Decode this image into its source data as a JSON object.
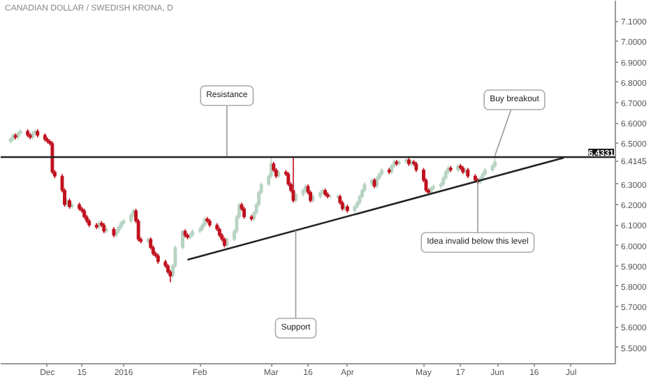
{
  "chart_data": {
    "type": "candlestick",
    "title": "CANADIAN DOLLAR / SWEDISH KRONA, D",
    "xlim": [
      "2015-11-12",
      "2016-07-19"
    ],
    "ylim": [
      5.42,
      7.2
    ],
    "xticks": [
      {
        "value": "2015-12-01",
        "label": "Dec"
      },
      {
        "value": "2015-12-15",
        "label": "15"
      },
      {
        "value": "2016-01-01",
        "label": "2016"
      },
      {
        "value": "2016-02-01",
        "label": "Feb"
      },
      {
        "value": "2016-03-01",
        "label": "Mar"
      },
      {
        "value": "2016-03-16",
        "label": "16"
      },
      {
        "value": "2016-04-01",
        "label": "Apr"
      },
      {
        "value": "2016-05-02",
        "label": "May"
      },
      {
        "value": "2016-05-17",
        "label": "17"
      },
      {
        "value": "2016-06-01",
        "label": "Jun"
      },
      {
        "value": "2016-06-16",
        "label": "16"
      },
      {
        "value": "2016-07-01",
        "label": "Jul"
      }
    ],
    "yticks": [
      {
        "value": 5.5,
        "label": "5.5000"
      },
      {
        "value": 5.6,
        "label": "5.6000"
      },
      {
        "value": 5.7,
        "label": "5.7000"
      },
      {
        "value": 5.8,
        "label": "5.8000"
      },
      {
        "value": 5.9,
        "label": "5.9000"
      },
      {
        "value": 6.0,
        "label": "6.0000"
      },
      {
        "value": 6.1,
        "label": "6.1000"
      },
      {
        "value": 6.2,
        "label": "6.2000"
      },
      {
        "value": 6.3,
        "label": "6.3000"
      },
      6.4145,
      {
        "value": 6.5,
        "label": "6.5000"
      },
      {
        "value": 6.6,
        "label": "6.6000"
      },
      {
        "value": 6.7,
        "label": "6.7000"
      },
      {
        "value": 6.8,
        "label": "6.8000"
      },
      {
        "value": 6.9,
        "label": "6.9000"
      },
      {
        "value": 7.0,
        "label": "7.0000"
      },
      {
        "value": 7.1,
        "label": "7.1000"
      }
    ],
    "ref_lines": [
      {
        "axis": "y",
        "value": 6.4331,
        "label": "6.4331",
        "color": "#222222"
      }
    ],
    "annotations": [
      {
        "text": "Resistance",
        "x": "2016-02-12",
        "y": 6.4331
      },
      {
        "text": "Support",
        "x": "2016-03-11",
        "y": 6.074
      },
      {
        "text": "Buy breakout",
        "x": "2016-05-31",
        "y": 6.44
      },
      {
        "text": "Idea invalid below this level",
        "x": "2016-05-24",
        "y": 6.316
      }
    ],
    "series": [
      {
        "color": "#b7d3c2",
        "x": [
          "2015-11-16",
          "2015-11-17",
          "2015-11-19",
          "2015-11-20",
          "2015-11-25",
          "2015-11-26",
          "2015-12-09",
          "2015-12-11",
          "2015-12-22",
          "2015-12-25",
          "2015-12-29",
          "2015-12-30",
          "2015-12-31",
          "2016-01-01",
          "2016-01-04",
          "2016-01-05",
          "2016-01-11",
          "2016-01-21",
          "2016-01-22",
          "2016-01-25",
          "2016-01-28",
          "2016-01-29",
          "2016-02-01",
          "2016-02-02",
          "2016-02-03",
          "2016-02-12",
          "2016-02-15",
          "2016-02-16",
          "2016-02-17",
          "2016-02-23",
          "2016-02-24",
          "2016-02-25",
          "2016-02-26",
          "2016-02-29",
          "2016-03-01",
          "2016-03-04",
          "2016-03-11",
          "2016-03-14",
          "2016-03-15",
          "2016-03-18",
          "2016-03-21",
          "2016-03-22",
          "2016-03-25",
          "2016-03-28",
          "2016-03-31",
          "2016-04-04",
          "2016-04-05",
          "2016-04-06",
          "2016-04-07",
          "2016-04-08",
          "2016-04-11",
          "2016-04-13",
          "2016-04-14",
          "2016-04-15",
          "2016-04-19",
          "2016-04-20",
          "2016-04-22",
          "2016-04-25",
          "2016-04-27",
          "2016-05-05",
          "2016-05-06",
          "2016-05-09",
          "2016-05-10",
          "2016-05-11",
          "2016-05-12",
          "2016-05-16",
          "2016-05-19",
          "2016-05-25",
          "2016-05-26",
          "2016-05-27",
          "2016-05-30",
          "2016-05-31"
        ],
        "ohlc": [
          [
            6.51,
            6.53,
            6.5,
            6.52
          ],
          [
            6.52,
            6.55,
            6.51,
            6.54
          ],
          [
            6.53,
            6.56,
            6.52,
            6.55
          ],
          [
            6.55,
            6.57,
            6.54,
            6.56
          ],
          [
            6.53,
            6.56,
            6.52,
            6.55
          ],
          [
            6.55,
            6.57,
            6.54,
            6.56
          ],
          [
            6.2,
            6.23,
            6.19,
            6.22
          ],
          [
            6.19,
            6.21,
            6.18,
            6.2
          ],
          [
            6.09,
            6.12,
            6.08,
            6.11
          ],
          [
            6.07,
            6.09,
            6.06,
            6.08
          ],
          [
            6.05,
            6.08,
            6.04,
            6.07
          ],
          [
            6.07,
            6.1,
            6.06,
            6.09
          ],
          [
            6.09,
            6.12,
            6.08,
            6.11
          ],
          [
            6.11,
            6.13,
            6.1,
            6.12
          ],
          [
            6.12,
            6.16,
            6.11,
            6.15
          ],
          [
            6.15,
            6.18,
            6.14,
            6.17
          ],
          [
            6.02,
            6.04,
            6.01,
            6.03
          ],
          [
            5.85,
            5.91,
            5.84,
            5.9
          ],
          [
            5.9,
            6.0,
            5.89,
            5.99
          ],
          [
            5.99,
            6.08,
            5.98,
            6.07
          ],
          [
            6.04,
            6.06,
            6.03,
            6.05
          ],
          [
            6.05,
            6.08,
            6.04,
            6.07
          ],
          [
            6.07,
            6.09,
            6.06,
            6.08
          ],
          [
            6.08,
            6.11,
            6.07,
            6.1
          ],
          [
            6.1,
            6.14,
            6.09,
            6.13
          ],
          [
            6.0,
            6.04,
            5.99,
            6.03
          ],
          [
            6.03,
            6.08,
            6.02,
            6.07
          ],
          [
            6.07,
            6.15,
            6.06,
            6.14
          ],
          [
            6.14,
            6.21,
            6.13,
            6.2
          ],
          [
            6.13,
            6.17,
            6.12,
            6.16
          ],
          [
            6.16,
            6.21,
            6.15,
            6.2
          ],
          [
            6.2,
            6.27,
            6.19,
            6.26
          ],
          [
            6.26,
            6.31,
            6.25,
            6.3
          ],
          [
            6.3,
            6.35,
            6.29,
            6.34
          ],
          [
            6.34,
            6.43,
            6.33,
            6.4
          ],
          [
            6.34,
            6.37,
            6.33,
            6.36
          ],
          [
            6.22,
            6.26,
            6.21,
            6.25
          ],
          [
            6.25,
            6.28,
            6.24,
            6.27
          ],
          [
            6.27,
            6.3,
            6.26,
            6.29
          ],
          [
            6.22,
            6.25,
            6.21,
            6.24
          ],
          [
            6.24,
            6.27,
            6.23,
            6.26
          ],
          [
            6.26,
            6.28,
            6.25,
            6.27
          ],
          [
            6.24,
            6.25,
            6.23,
            6.24
          ],
          [
            6.24,
            6.25,
            6.23,
            6.24
          ],
          [
            6.18,
            6.2,
            6.17,
            6.19
          ],
          [
            6.17,
            6.2,
            6.16,
            6.19
          ],
          [
            6.19,
            6.22,
            6.18,
            6.21
          ],
          [
            6.21,
            6.25,
            6.2,
            6.24
          ],
          [
            6.24,
            6.28,
            6.23,
            6.27
          ],
          [
            6.27,
            6.31,
            6.26,
            6.3
          ],
          [
            6.3,
            6.33,
            6.29,
            6.32
          ],
          [
            6.29,
            6.34,
            6.28,
            6.33
          ],
          [
            6.33,
            6.36,
            6.32,
            6.35
          ],
          [
            6.35,
            6.38,
            6.34,
            6.37
          ],
          [
            6.36,
            6.4,
            6.35,
            6.39
          ],
          [
            6.39,
            6.42,
            6.38,
            6.41
          ],
          [
            6.4,
            6.42,
            6.39,
            6.41
          ],
          [
            6.41,
            6.43,
            6.4,
            6.42
          ],
          [
            6.4,
            6.42,
            6.39,
            6.41
          ],
          [
            6.26,
            6.29,
            6.25,
            6.28
          ],
          [
            6.28,
            6.3,
            6.27,
            6.29
          ],
          [
            6.29,
            6.31,
            6.28,
            6.3
          ],
          [
            6.3,
            6.34,
            6.29,
            6.33
          ],
          [
            6.33,
            6.37,
            6.32,
            6.36
          ],
          [
            6.36,
            6.39,
            6.35,
            6.38
          ],
          [
            6.37,
            6.4,
            6.36,
            6.39
          ],
          [
            6.36,
            6.38,
            6.35,
            6.37
          ],
          [
            6.31,
            6.34,
            6.3,
            6.33
          ],
          [
            6.33,
            6.36,
            6.32,
            6.35
          ],
          [
            6.35,
            6.38,
            6.34,
            6.37
          ],
          [
            6.37,
            6.4,
            6.36,
            6.39
          ],
          [
            6.39,
            6.44,
            6.38,
            6.41
          ]
        ]
      },
      {
        "color": "#c0101e",
        "x": [
          "2015-11-18",
          "2015-11-23",
          "2015-11-24",
          "2015-11-27",
          "2015-11-30",
          "2015-12-01",
          "2015-12-02",
          "2015-12-03",
          "2015-12-04",
          "2015-12-07",
          "2015-12-08",
          "2015-12-10",
          "2015-12-14",
          "2015-12-15",
          "2015-12-16",
          "2015-12-17",
          "2015-12-18",
          "2015-12-21",
          "2015-12-23",
          "2015-12-24",
          "2015-12-28",
          "2016-01-06",
          "2016-01-07",
          "2016-01-08",
          "2016-01-12",
          "2016-01-13",
          "2016-01-14",
          "2016-01-15",
          "2016-01-18",
          "2016-01-19",
          "2016-01-20",
          "2016-01-26",
          "2016-01-27",
          "2016-02-04",
          "2016-02-05",
          "2016-02-08",
          "2016-02-09",
          "2016-02-10",
          "2016-02-11",
          "2016-02-18",
          "2016-02-19",
          "2016-02-22",
          "2016-03-02",
          "2016-03-03",
          "2016-03-07",
          "2016-03-08",
          "2016-03-09",
          "2016-03-10",
          "2016-03-16",
          "2016-03-17",
          "2016-03-23",
          "2016-03-24",
          "2016-03-29",
          "2016-03-30",
          "2016-04-01",
          "2016-04-12",
          "2016-04-18",
          "2016-04-21",
          "2016-04-26",
          "2016-04-28",
          "2016-04-29",
          "2016-05-02",
          "2016-05-03",
          "2016-05-04",
          "2016-05-13",
          "2016-05-17",
          "2016-05-18",
          "2016-05-20",
          "2016-05-23",
          "2016-05-24"
        ],
        "ohlc": [
          [
            6.54,
            6.55,
            6.52,
            6.53
          ],
          [
            6.56,
            6.57,
            6.53,
            6.54
          ],
          [
            6.54,
            6.55,
            6.52,
            6.53
          ],
          [
            6.56,
            6.57,
            6.53,
            6.54
          ],
          [
            6.54,
            6.55,
            6.51,
            6.52
          ],
          [
            6.52,
            6.53,
            6.5,
            6.51
          ],
          [
            6.51,
            6.52,
            6.49,
            6.5
          ],
          [
            6.5,
            6.51,
            6.35,
            6.36
          ],
          [
            6.36,
            6.37,
            6.33,
            6.34
          ],
          [
            6.34,
            6.35,
            6.26,
            6.27
          ],
          [
            6.27,
            6.28,
            6.19,
            6.2
          ],
          [
            6.22,
            6.23,
            6.18,
            6.19
          ],
          [
            6.2,
            6.21,
            6.17,
            6.18
          ],
          [
            6.18,
            6.19,
            6.16,
            6.17
          ],
          [
            6.17,
            6.18,
            6.13,
            6.14
          ],
          [
            6.14,
            6.15,
            6.11,
            6.12
          ],
          [
            6.12,
            6.13,
            6.09,
            6.1
          ],
          [
            6.1,
            6.11,
            6.08,
            6.09
          ],
          [
            6.11,
            6.12,
            6.09,
            6.1
          ],
          [
            6.1,
            6.11,
            6.06,
            6.07
          ],
          [
            6.08,
            6.09,
            6.04,
            6.05
          ],
          [
            6.17,
            6.18,
            6.11,
            6.12
          ],
          [
            6.12,
            6.13,
            6.02,
            6.03
          ],
          [
            6.03,
            6.04,
            6.01,
            6.02
          ],
          [
            6.03,
            6.04,
            5.98,
            5.99
          ],
          [
            5.99,
            6.0,
            5.95,
            5.96
          ],
          [
            5.96,
            5.97,
            5.94,
            5.95
          ],
          [
            5.95,
            5.96,
            5.91,
            5.92
          ],
          [
            5.92,
            5.93,
            5.89,
            5.9
          ],
          [
            5.9,
            5.91,
            5.86,
            5.87
          ],
          [
            5.87,
            5.88,
            5.82,
            5.85
          ],
          [
            6.07,
            6.08,
            6.04,
            6.05
          ],
          [
            6.05,
            6.06,
            6.03,
            6.04
          ],
          [
            6.13,
            6.14,
            6.11,
            6.12
          ],
          [
            6.12,
            6.13,
            6.09,
            6.1
          ],
          [
            6.1,
            6.11,
            6.07,
            6.08
          ],
          [
            6.08,
            6.09,
            6.04,
            6.05
          ],
          [
            6.05,
            6.06,
            6.02,
            6.03
          ],
          [
            6.03,
            6.04,
            5.99,
            6.0
          ],
          [
            6.2,
            6.21,
            6.17,
            6.18
          ],
          [
            6.18,
            6.19,
            6.13,
            6.14
          ],
          [
            6.14,
            6.15,
            6.12,
            6.13
          ],
          [
            6.4,
            6.41,
            6.36,
            6.37
          ],
          [
            6.37,
            6.38,
            6.33,
            6.34
          ],
          [
            6.36,
            6.37,
            6.34,
            6.35
          ],
          [
            6.35,
            6.36,
            6.29,
            6.3
          ],
          [
            6.3,
            6.31,
            6.26,
            6.27
          ],
          [
            6.27,
            6.43,
            6.21,
            6.22
          ],
          [
            6.29,
            6.3,
            6.25,
            6.26
          ],
          [
            6.26,
            6.27,
            6.21,
            6.22
          ],
          [
            6.27,
            6.28,
            6.24,
            6.25
          ],
          [
            6.25,
            6.26,
            6.23,
            6.24
          ],
          [
            6.24,
            6.25,
            6.2,
            6.21
          ],
          [
            6.21,
            6.22,
            6.17,
            6.18
          ],
          [
            6.19,
            6.2,
            6.16,
            6.17
          ],
          [
            6.32,
            6.33,
            6.28,
            6.29
          ],
          [
            6.37,
            6.38,
            6.35,
            6.36
          ],
          [
            6.41,
            6.42,
            6.39,
            6.4
          ],
          [
            6.42,
            6.43,
            6.39,
            6.4
          ],
          [
            6.41,
            6.42,
            6.39,
            6.4
          ],
          [
            6.4,
            6.41,
            6.36,
            6.37
          ],
          [
            6.37,
            6.38,
            6.31,
            6.32
          ],
          [
            6.32,
            6.33,
            6.26,
            6.27
          ],
          [
            6.27,
            6.28,
            6.25,
            6.26
          ],
          [
            6.38,
            6.39,
            6.36,
            6.37
          ],
          [
            6.39,
            6.4,
            6.37,
            6.38
          ],
          [
            6.38,
            6.39,
            6.35,
            6.36
          ],
          [
            6.37,
            6.38,
            6.33,
            6.34
          ],
          [
            6.34,
            6.35,
            6.31,
            6.32
          ],
          [
            6.32,
            6.33,
            6.3,
            6.31
          ]
        ]
      },
      {
        "type": "line",
        "color": "#222222",
        "x": [
          "2016-01-27",
          "2016-06-28"
        ],
        "values": [
          5.93,
          6.43
        ]
      }
    ]
  }
}
